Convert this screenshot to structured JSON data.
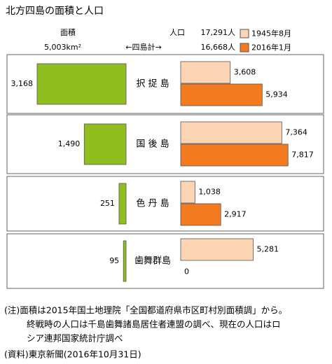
{
  "chart_data": {
    "type": "bar",
    "title": "北方四島の面積と人口",
    "area_label": "面積",
    "area_total": "5,003km²",
    "total_label": "←四島計→",
    "population_label": "人口",
    "population_totals": [
      "17,291人",
      "16,668人"
    ],
    "categories": [
      "択 捉 島",
      "国 後 島",
      "色 丹 島",
      "歯舞群島"
    ],
    "series": [
      {
        "name": "面積",
        "color": "#8fbe1e",
        "values": [
          3168,
          1490,
          251,
          95
        ],
        "value_labels": [
          "3,168",
          "1,490",
          "251",
          "95"
        ]
      },
      {
        "name": "1945年8月",
        "color": "#fcd5b4",
        "values": [
          3608,
          7364,
          1038,
          5281
        ],
        "value_labels": [
          "3,608",
          "7,364",
          "1,038",
          "5,281"
        ]
      },
      {
        "name": "2016年1月",
        "color": "#f47a20",
        "values": [
          5934,
          7817,
          2917,
          0
        ],
        "value_labels": [
          "5,934",
          "7,817",
          "2,917",
          "0"
        ]
      }
    ],
    "notes": [
      "(注)面積は2015年国土地理院「全国都道府県市区町村別面積調」から。",
      "終戦時の人口は千島歯舞諸島居住者連盟の調べ、現在の人口はロ",
      "シア連邦国家統計庁調べ"
    ],
    "source": "(資料)東京新聞(2016年10月31日)"
  }
}
